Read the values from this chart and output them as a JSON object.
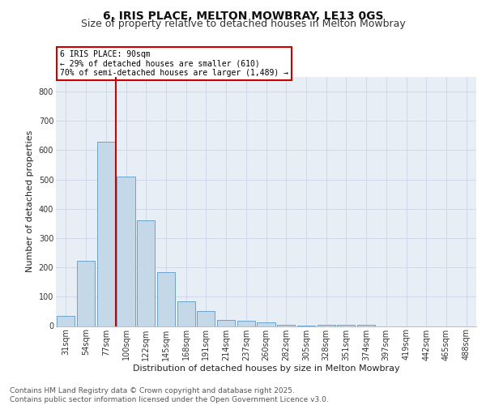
{
  "title1": "6, IRIS PLACE, MELTON MOWBRAY, LE13 0GS",
  "title2": "Size of property relative to detached houses in Melton Mowbray",
  "xlabel": "Distribution of detached houses by size in Melton Mowbray",
  "ylabel": "Number of detached properties",
  "categories": [
    "31sqm",
    "54sqm",
    "77sqm",
    "100sqm",
    "122sqm",
    "145sqm",
    "168sqm",
    "191sqm",
    "214sqm",
    "237sqm",
    "260sqm",
    "282sqm",
    "305sqm",
    "328sqm",
    "351sqm",
    "374sqm",
    "397sqm",
    "419sqm",
    "442sqm",
    "465sqm",
    "488sqm"
  ],
  "values": [
    35,
    222,
    630,
    510,
    360,
    183,
    85,
    52,
    22,
    18,
    13,
    5,
    1,
    5,
    4,
    3,
    0,
    0,
    0,
    0,
    0
  ],
  "bar_color": "#c5d8e8",
  "bar_edge_color": "#5a9ac5",
  "grid_color": "#d0d8e8",
  "background_color": "#e8eef5",
  "annotation_box_text": "6 IRIS PLACE: 90sqm\n← 29% of detached houses are smaller (610)\n70% of semi-detached houses are larger (1,489) →",
  "annotation_box_color": "#cc0000",
  "vline_x_index": 2.5,
  "vline_color": "#cc0000",
  "ylim": [
    0,
    850
  ],
  "yticks": [
    0,
    100,
    200,
    300,
    400,
    500,
    600,
    700,
    800
  ],
  "footer": "Contains HM Land Registry data © Crown copyright and database right 2025.\nContains public sector information licensed under the Open Government Licence v3.0.",
  "title_fontsize": 10,
  "subtitle_fontsize": 9,
  "axis_label_fontsize": 8,
  "tick_fontsize": 7,
  "footer_fontsize": 6.5
}
